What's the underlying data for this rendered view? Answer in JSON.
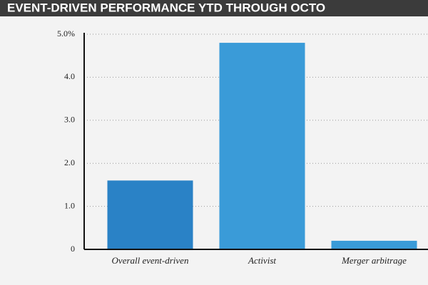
{
  "chart_data": {
    "type": "bar",
    "title": "EVENT-DRIVEN PERFORMANCE YTD THROUGH OCTO",
    "categories": [
      "Overall event-driven",
      "Activist",
      "Merger arbitrage"
    ],
    "values": [
      1.6,
      4.8,
      0.2
    ],
    "colors": [
      "#2a82c6",
      "#3a9bd8",
      "#3a9bd8"
    ],
    "ylim": [
      0,
      5
    ],
    "yticks": [
      0,
      {
        "value": 1,
        "label": "1.0"
      },
      {
        "value": 2,
        "label": "2.0"
      },
      {
        "value": 3,
        "label": "3.0"
      },
      {
        "value": 4,
        "label": "4.0"
      },
      {
        "value": 5,
        "label": "5.0%"
      }
    ],
    "grid": true
  }
}
